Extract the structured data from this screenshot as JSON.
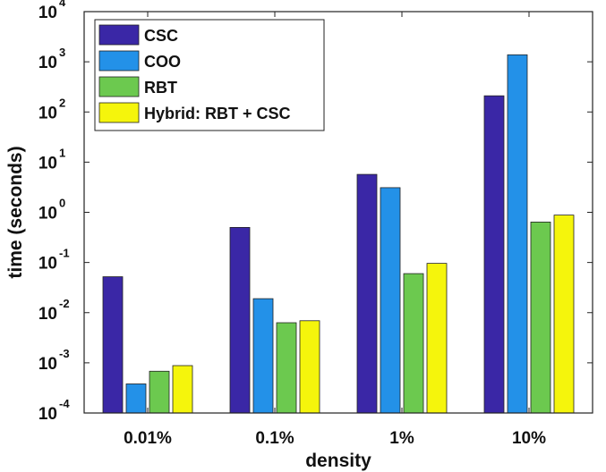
{
  "chart_data": {
    "type": "bar",
    "scale_y": "log",
    "categories": [
      "0.01%",
      "0.1%",
      "1%",
      "10%"
    ],
    "xlabel": "density",
    "ylabel": "time (seconds)",
    "ylim": [
      0.0001,
      10000
    ],
    "y_ticks": [
      {
        "base": "10",
        "exp": "-4"
      },
      {
        "base": "10",
        "exp": "-3"
      },
      {
        "base": "10",
        "exp": "-2"
      },
      {
        "base": "10",
        "exp": "-1"
      },
      {
        "base": "10",
        "exp": "0"
      },
      {
        "base": "10",
        "exp": "1"
      },
      {
        "base": "10",
        "exp": "2"
      },
      {
        "base": "10",
        "exp": "3"
      },
      {
        "base": "10",
        "exp": "4"
      }
    ],
    "legend_position": "top-left",
    "grid": false,
    "series": [
      {
        "name": "CSC",
        "color": "#3a27a6",
        "values": [
          0.052,
          0.5,
          5.7,
          210
        ]
      },
      {
        "name": "COO",
        "color": "#2391e8",
        "values": [
          0.00038,
          0.019,
          3.1,
          1380
        ]
      },
      {
        "name": "RBT",
        "color": "#6cc94f",
        "values": [
          0.00068,
          0.0063,
          0.06,
          0.64
        ]
      },
      {
        "name": "Hybrid: RBT + CSC",
        "color": "#f5f50c",
        "values": [
          0.00088,
          0.0069,
          0.096,
          0.88
        ]
      }
    ]
  }
}
